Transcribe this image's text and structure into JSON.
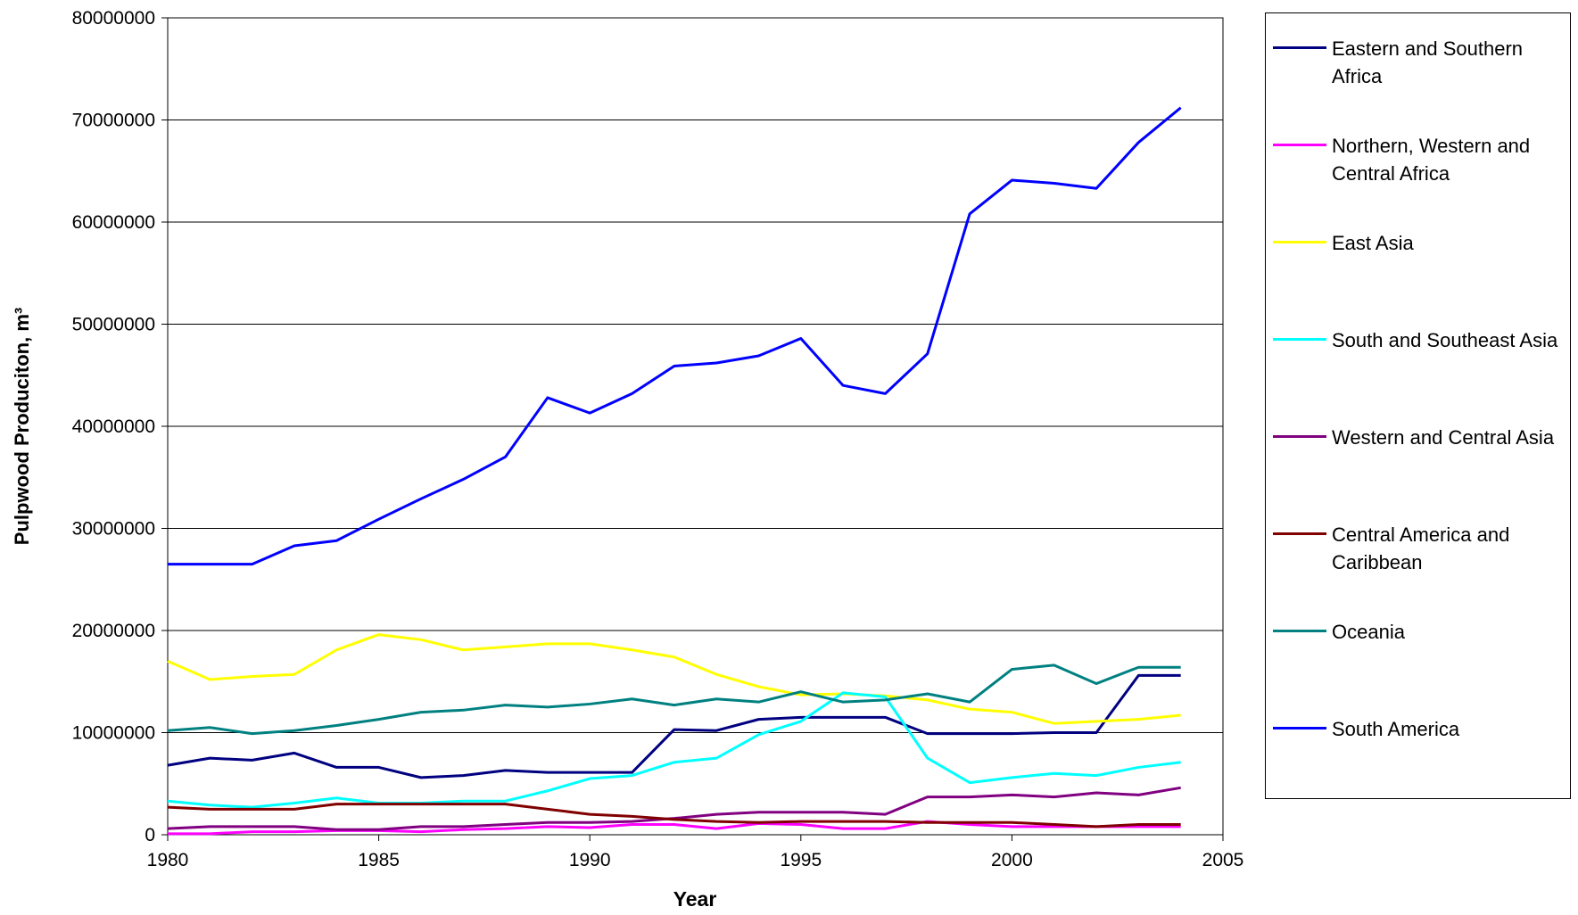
{
  "chart_data": {
    "type": "line",
    "x_label": "Year",
    "y_label": "Pulpwood Produciton, m³",
    "x": [
      1980,
      1981,
      1982,
      1983,
      1984,
      1985,
      1986,
      1987,
      1988,
      1989,
      1990,
      1991,
      1992,
      1993,
      1994,
      1995,
      1996,
      1997,
      1998,
      1999,
      2000,
      2001,
      2002,
      2003,
      2004
    ],
    "xlim": [
      1980,
      2005
    ],
    "xticks": [
      1980,
      1985,
      1990,
      1995,
      2000,
      2005
    ],
    "ylim": [
      0,
      80000000
    ],
    "yticks": [
      0,
      10000000,
      20000000,
      30000000,
      40000000,
      50000000,
      60000000,
      70000000,
      80000000
    ],
    "grid": true,
    "series": [
      {
        "name": "Eastern and Southern Africa",
        "color": "#000080",
        "values": [
          6800000,
          7500000,
          7300000,
          8000000,
          6600000,
          6600000,
          5600000,
          5800000,
          6300000,
          6100000,
          6100000,
          6100000,
          10300000,
          10200000,
          11300000,
          11500000,
          11500000,
          11500000,
          9900000,
          9900000,
          9900000,
          10000000,
          10000000,
          15600000,
          15600000
        ]
      },
      {
        "name": "Northern, Western and Central Africa",
        "color": "#ff00ff",
        "values": [
          100000,
          100000,
          300000,
          300000,
          400000,
          400000,
          300000,
          500000,
          600000,
          800000,
          700000,
          1000000,
          1000000,
          600000,
          1100000,
          1000000,
          600000,
          600000,
          1300000,
          1000000,
          800000,
          800000,
          800000,
          800000,
          800000
        ]
      },
      {
        "name": "East Asia",
        "color": "#ffff00",
        "values": [
          17000000,
          15200000,
          15500000,
          15700000,
          18100000,
          19600000,
          19100000,
          18100000,
          18400000,
          18700000,
          18700000,
          18100000,
          17400000,
          15700000,
          14500000,
          13700000,
          13800000,
          13600000,
          13200000,
          12300000,
          12000000,
          10900000,
          11100000,
          11300000,
          11700000
        ]
      },
      {
        "name": "South and Southeast Asia",
        "color": "#00ffff",
        "values": [
          3300000,
          2900000,
          2700000,
          3100000,
          3600000,
          3100000,
          3100000,
          3300000,
          3300000,
          4300000,
          5500000,
          5800000,
          7100000,
          7500000,
          9800000,
          11100000,
          13900000,
          13500000,
          7500000,
          5100000,
          5600000,
          6000000,
          5800000,
          6600000,
          7100000
        ]
      },
      {
        "name": "Western and Central Asia",
        "color": "#800080",
        "values": [
          600000,
          800000,
          800000,
          800000,
          500000,
          500000,
          800000,
          800000,
          1000000,
          1200000,
          1200000,
          1300000,
          1600000,
          2000000,
          2200000,
          2200000,
          2200000,
          2000000,
          3700000,
          3700000,
          3900000,
          3700000,
          4100000,
          3900000,
          4600000
        ]
      },
      {
        "name": "Central America and Caribbean",
        "color": "#800000",
        "values": [
          2700000,
          2500000,
          2500000,
          2500000,
          3000000,
          3000000,
          3000000,
          3000000,
          3000000,
          2500000,
          2000000,
          1800000,
          1500000,
          1300000,
          1200000,
          1300000,
          1300000,
          1300000,
          1200000,
          1200000,
          1200000,
          1000000,
          800000,
          1000000,
          1000000
        ]
      },
      {
        "name": "Oceania",
        "color": "#008080",
        "values": [
          10200000,
          10500000,
          9900000,
          10200000,
          10700000,
          11300000,
          12000000,
          12200000,
          12700000,
          12500000,
          12800000,
          13300000,
          12700000,
          13300000,
          13000000,
          14000000,
          13000000,
          13200000,
          13800000,
          13000000,
          16200000,
          16600000,
          14800000,
          16400000,
          16400000
        ]
      },
      {
        "name": "South America",
        "color": "#0000ff",
        "values": [
          26500000,
          26500000,
          26500000,
          28300000,
          28800000,
          30900000,
          32900000,
          34800000,
          37000000,
          42800000,
          41300000,
          43200000,
          45900000,
          46200000,
          46900000,
          48600000,
          44000000,
          43200000,
          47100000,
          60800000,
          64100000,
          63800000,
          63300000,
          67800000,
          71200000
        ]
      }
    ]
  }
}
